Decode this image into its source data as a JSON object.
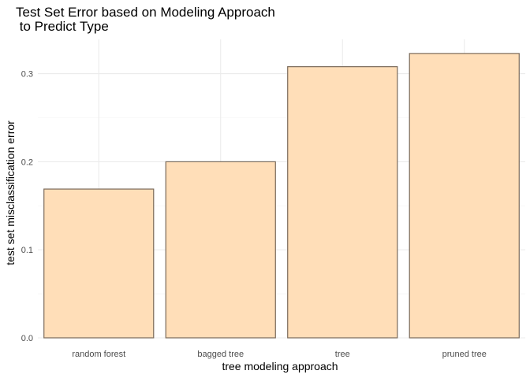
{
  "chart_data": {
    "type": "bar",
    "title_lines": [
      "Test Set Error based on Modeling Approach",
      " to Predict Type"
    ],
    "xlabel": "tree modeling approach",
    "ylabel": "test set misclassification error",
    "categories": [
      "random forest",
      "bagged tree",
      "tree",
      "pruned tree"
    ],
    "values": [
      0.169,
      0.2,
      0.308,
      0.323
    ],
    "ylim": [
      0,
      0.339
    ],
    "yticks": [
      0.0,
      0.1,
      0.2,
      0.3
    ],
    "ytick_labels": [
      "0.0",
      "0.1",
      "0.2",
      "0.3"
    ],
    "grid": true,
    "colors": {
      "bar_fill": "#ffdeb8",
      "bar_stroke": "#7a6a5a"
    }
  }
}
